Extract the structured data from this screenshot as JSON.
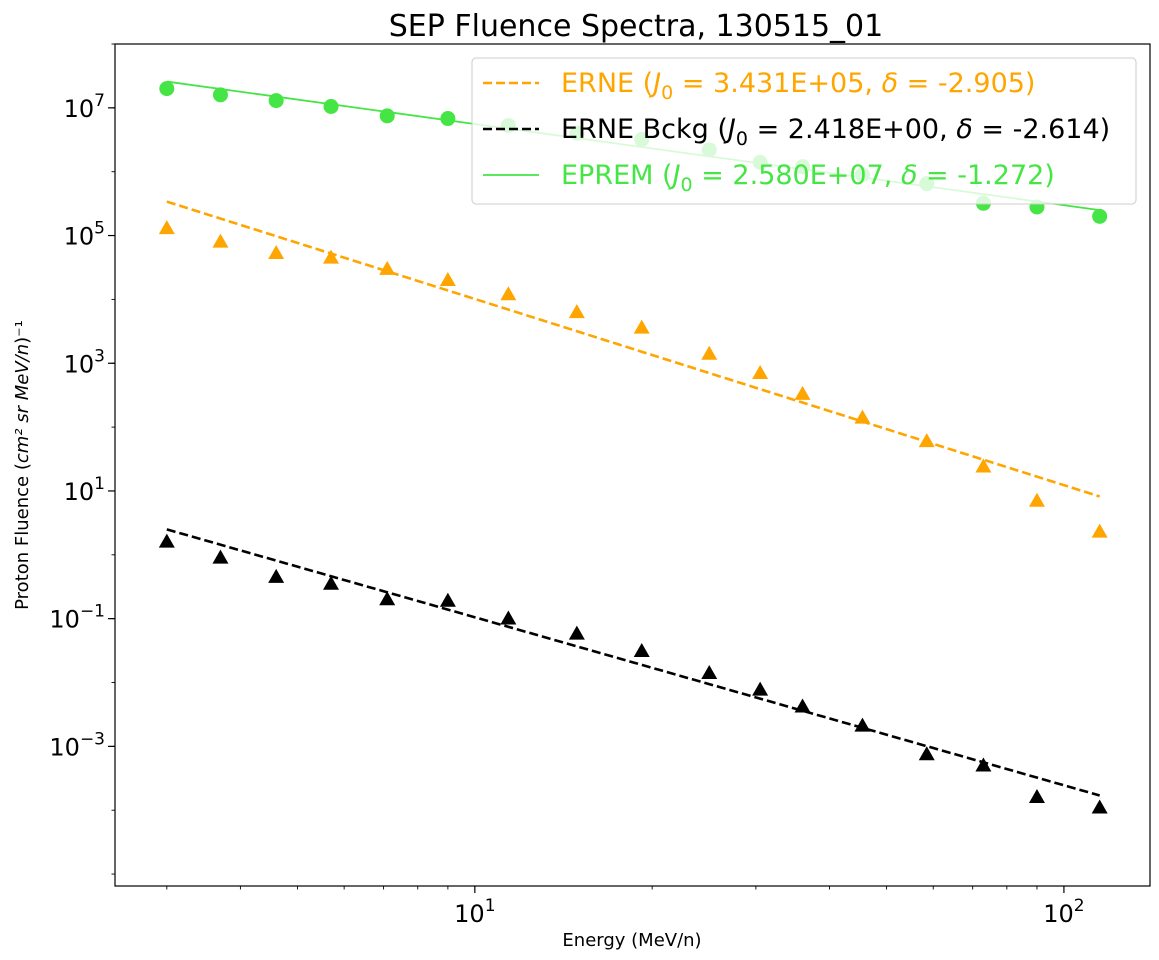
{
  "chart_data": {
    "type": "scatter",
    "title": "SEP Fluence Spectra, 130515_01",
    "xlabel": "Energy (MeV/n)",
    "ylabel_text": "Proton Fluence (",
    "ylabel_math": "cm² sr MeV/n",
    "ylabel_tail": ")⁻¹",
    "xscale": "log",
    "yscale": "log",
    "xlim": [
      2.45,
      140
    ],
    "ylim": [
      6.5e-06,
      100000000
    ],
    "xticks": [
      {
        "value": 10,
        "base": "10",
        "exp": "1"
      },
      {
        "value": 100,
        "base": "10",
        "exp": "2"
      }
    ],
    "yticks": [
      {
        "value": 0.001,
        "base": "10",
        "exp": "−3"
      },
      {
        "value": 0.1,
        "base": "10",
        "exp": "−1"
      },
      {
        "value": 10,
        "base": "10",
        "exp": "1"
      },
      {
        "value": 1000,
        "base": "10",
        "exp": "3"
      },
      {
        "value": 100000,
        "base": "10",
        "exp": "5"
      },
      {
        "value": 10000000,
        "base": "10",
        "exp": "7"
      }
    ],
    "legend_position": "top-right",
    "energies": [
      3.0,
      3.7,
      4.6,
      5.7,
      7.1,
      9.0,
      11.4,
      14.9,
      19.2,
      25.0,
      30.5,
      36.0,
      45.5,
      58.5,
      73.0,
      90.0,
      115.0
    ],
    "series": [
      {
        "name": "ERNE",
        "kind": "data",
        "marker": "triangle",
        "color": "#ffa500",
        "values": [
          130000,
          80000,
          53000,
          45000,
          30000,
          20000,
          12000,
          6300,
          3600,
          1400,
          700,
          330,
          140,
          60,
          24,
          7,
          2.3
        ]
      },
      {
        "name": "ERNE Bckg",
        "kind": "data",
        "marker": "triangle",
        "color": "#000000",
        "values": [
          1.6,
          0.9,
          0.45,
          0.35,
          0.2,
          0.19,
          0.1,
          0.058,
          0.031,
          0.014,
          0.0077,
          0.0042,
          0.0021,
          0.00075,
          0.0005,
          0.00016,
          0.00011
        ]
      },
      {
        "name": "EPREM",
        "kind": "data",
        "marker": "circle",
        "color": "#44e544",
        "values": [
          20000000,
          16000000,
          13000000,
          10500000,
          7500000,
          6800000,
          5300000,
          4000000,
          3200000,
          2200000,
          1400000,
          1200000,
          900000,
          650000,
          320000,
          280000,
          200000
        ]
      }
    ],
    "fits": [
      {
        "series": "ERNE",
        "color": "#ffa500",
        "style": "dashed",
        "x": [
          3.0,
          115.0
        ],
        "y": [
          340000,
          8.2
        ]
      },
      {
        "series": "ERNE Bckg",
        "color": "#000000",
        "style": "dashed",
        "x": [
          3.0,
          115.0
        ],
        "y": [
          2.5,
          0.00017
        ]
      },
      {
        "series": "EPREM",
        "color": "#44e544",
        "style": "solid",
        "x": [
          3.0,
          115.0
        ],
        "y": [
          25800000,
          250000
        ]
      }
    ],
    "legend": [
      {
        "label_pre": "ERNE (",
        "J0": "J",
        "J0_sub": "0",
        "eq1": " = 3.431E+05, ",
        "delta": "δ",
        "eq2": " = -2.905)",
        "color": "#ffa500",
        "text_color": "#ffa500",
        "style": "dashed"
      },
      {
        "label_pre": "ERNE Bckg (",
        "J0": "J",
        "J0_sub": "0",
        "eq1": " = 2.418E+00, ",
        "delta": "δ",
        "eq2": " = -2.614)",
        "color": "#000000",
        "text_color": "#000000",
        "style": "dashed"
      },
      {
        "label_pre": "EPREM (",
        "J0": "J",
        "J0_sub": "0",
        "eq1": " = 2.580E+07, ",
        "delta": "δ",
        "eq2": " = -1.272)",
        "color": "#44e544",
        "text_color": "#44e544",
        "style": "solid"
      }
    ]
  }
}
